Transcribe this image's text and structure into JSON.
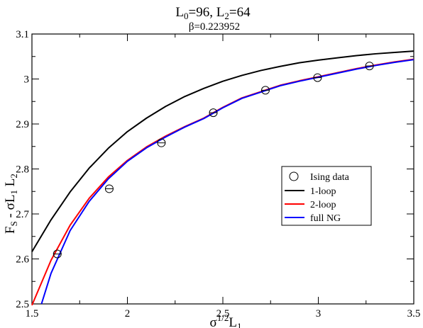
{
  "header": {
    "title_L0": "L",
    "title_L0_sub": "0",
    "title_L0_val": "=96,  L",
    "title_L2_sub": "2",
    "title_L2_val": "=64",
    "subtitle": "β=0.223952"
  },
  "axes": {
    "ylabel_main": "F",
    "ylabel_sub_s": "S",
    "ylabel_mid": " - σL",
    "ylabel_sub_1": "1",
    "ylabel_mid2": " L",
    "ylabel_sub_2": "2",
    "xlabel_sigma": "σ",
    "xlabel_sup": "1/2",
    "xlabel_L": "L",
    "xlabel_sub": "1"
  },
  "legend": {
    "items": [
      {
        "label": "Ising data",
        "kind": "marker",
        "color": "#000000"
      },
      {
        "label": "1-loop",
        "kind": "line",
        "color": "#000000"
      },
      {
        "label": "2-loop",
        "kind": "line",
        "color": "#ff0000"
      },
      {
        "label": "full NG",
        "kind": "line",
        "color": "#0000ff"
      }
    ]
  },
  "chart_data": {
    "type": "scatter",
    "xlim": [
      1.5,
      3.5
    ],
    "ylim": [
      2.5,
      3.1
    ],
    "x_ticks": [
      "1.5",
      "2",
      "2.5",
      "3",
      "3.5"
    ],
    "y_ticks": [
      "2.5",
      "2.6",
      "2.7",
      "2.8",
      "2.9",
      "3",
      "3.1"
    ],
    "x_tick_values": [
      1.5,
      2.0,
      2.5,
      3.0,
      3.5
    ],
    "y_tick_values": [
      2.5,
      2.6,
      2.7,
      2.8,
      2.9,
      3.0,
      3.1
    ],
    "legend_position": "center-right",
    "grid": false,
    "series": [
      {
        "name": "Ising data",
        "kind": "points",
        "color": "#000000",
        "x": [
          1.633,
          1.905,
          2.178,
          2.45,
          2.723,
          2.996,
          3.268
        ],
        "y": [
          2.611,
          2.756,
          2.858,
          2.925,
          2.975,
          3.003,
          3.029
        ]
      },
      {
        "name": "1-loop",
        "kind": "line",
        "color": "#000000",
        "x": [
          1.5,
          1.6,
          1.7,
          1.8,
          1.9,
          2.0,
          2.1,
          2.2,
          2.3,
          2.4,
          2.5,
          2.6,
          2.7,
          2.8,
          2.9,
          3.0,
          3.1,
          3.2,
          3.3,
          3.4,
          3.5
        ],
        "y": [
          2.616,
          2.687,
          2.749,
          2.802,
          2.846,
          2.883,
          2.913,
          2.939,
          2.961,
          2.979,
          2.995,
          3.008,
          3.019,
          3.028,
          3.036,
          3.042,
          3.047,
          3.052,
          3.056,
          3.059,
          3.062
        ]
      },
      {
        "name": "2-loop",
        "kind": "line",
        "color": "#ff0000",
        "x": [
          1.5,
          1.6,
          1.7,
          1.8,
          1.9,
          2.0,
          2.1,
          2.2,
          2.3,
          2.4,
          2.5,
          2.6,
          2.7,
          2.8,
          2.9,
          3.0,
          3.1,
          3.2,
          3.3,
          3.4,
          3.5
        ],
        "y": [
          2.497,
          2.597,
          2.675,
          2.735,
          2.782,
          2.819,
          2.849,
          2.873,
          2.894,
          2.913,
          2.937,
          2.958,
          2.972,
          2.986,
          2.996,
          3.005,
          3.014,
          3.023,
          3.031,
          3.038,
          3.044
        ]
      },
      {
        "name": "full NG",
        "kind": "line",
        "color": "#0000ff",
        "x": [
          1.55,
          1.6,
          1.7,
          1.8,
          1.9,
          2.0,
          2.1,
          2.2,
          2.3,
          2.4,
          2.5,
          2.6,
          2.7,
          2.8,
          2.9,
          3.0,
          3.1,
          3.2,
          3.3,
          3.4,
          3.5
        ],
        "y": [
          2.5,
          2.568,
          2.663,
          2.728,
          2.778,
          2.817,
          2.847,
          2.871,
          2.893,
          2.912,
          2.936,
          2.957,
          2.971,
          2.985,
          2.995,
          3.004,
          3.013,
          3.022,
          3.03,
          3.037,
          3.043
        ]
      }
    ]
  }
}
